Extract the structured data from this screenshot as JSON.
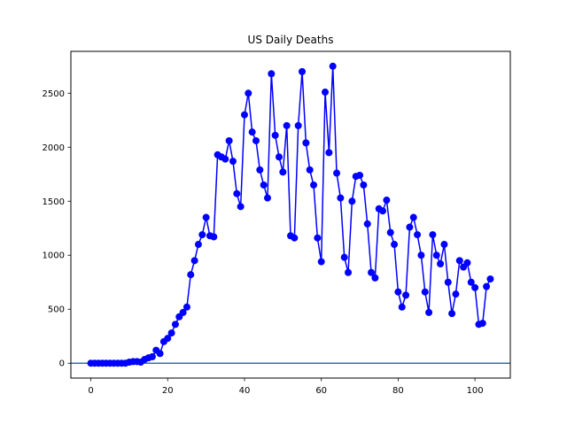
{
  "chart_data": {
    "type": "line",
    "title": "US Daily Deaths",
    "xlabel": "",
    "ylabel": "",
    "xlim": [
      -5.2,
      109.2
    ],
    "ylim": [
      -137.5,
      2887.5
    ],
    "x_ticks": [
      0,
      20,
      40,
      60,
      80,
      100
    ],
    "y_ticks": [
      0,
      500,
      1000,
      1500,
      2000,
      2500
    ],
    "grid": false,
    "legend": "none",
    "reference_line": {
      "y": 0,
      "color": "#1f77b4"
    },
    "series": [
      {
        "color": "#0000ff",
        "marker": "circle",
        "x": [
          0,
          1,
          2,
          3,
          4,
          5,
          6,
          7,
          8,
          9,
          10,
          11,
          12,
          13,
          14,
          15,
          16,
          17,
          18,
          19,
          20,
          21,
          22,
          23,
          24,
          25,
          26,
          27,
          28,
          29,
          30,
          31,
          32,
          33,
          34,
          35,
          36,
          37,
          38,
          39,
          40,
          41,
          42,
          43,
          44,
          45,
          46,
          47,
          48,
          49,
          50,
          51,
          52,
          53,
          54,
          55,
          56,
          57,
          58,
          59,
          60,
          61,
          62,
          63,
          64,
          65,
          66,
          67,
          68,
          69,
          70,
          71,
          72,
          73,
          74,
          75,
          76,
          77,
          78,
          79,
          80,
          81,
          82,
          83,
          84,
          85,
          86,
          87,
          88,
          89,
          90,
          91,
          92,
          93,
          94,
          95,
          96,
          97,
          98,
          99,
          100,
          101,
          102,
          103,
          104
        ],
        "values": [
          0,
          0,
          0,
          0,
          0,
          0,
          0,
          0,
          0,
          0,
          10,
          15,
          15,
          10,
          35,
          50,
          60,
          120,
          90,
          200,
          230,
          280,
          360,
          430,
          470,
          520,
          820,
          950,
          1100,
          1190,
          1350,
          1180,
          1170,
          1930,
          1910,
          1890,
          2060,
          1870,
          1570,
          1450,
          2300,
          2500,
          2140,
          2060,
          1790,
          1650,
          1530,
          2680,
          2110,
          1910,
          1770,
          2200,
          1180,
          1160,
          2200,
          2700,
          2040,
          1790,
          1650,
          1160,
          940,
          2510,
          1950,
          2750,
          1760,
          1530,
          980,
          840,
          1500,
          1730,
          1740,
          1650,
          1290,
          840,
          790,
          1430,
          1410,
          1510,
          1210,
          1100,
          660,
          520,
          630,
          1260,
          1350,
          1190,
          1000,
          660,
          470,
          1190,
          1000,
          920,
          1100,
          750,
          460,
          640,
          950,
          890,
          930,
          750,
          700,
          360,
          370,
          710,
          780
        ]
      }
    ]
  }
}
